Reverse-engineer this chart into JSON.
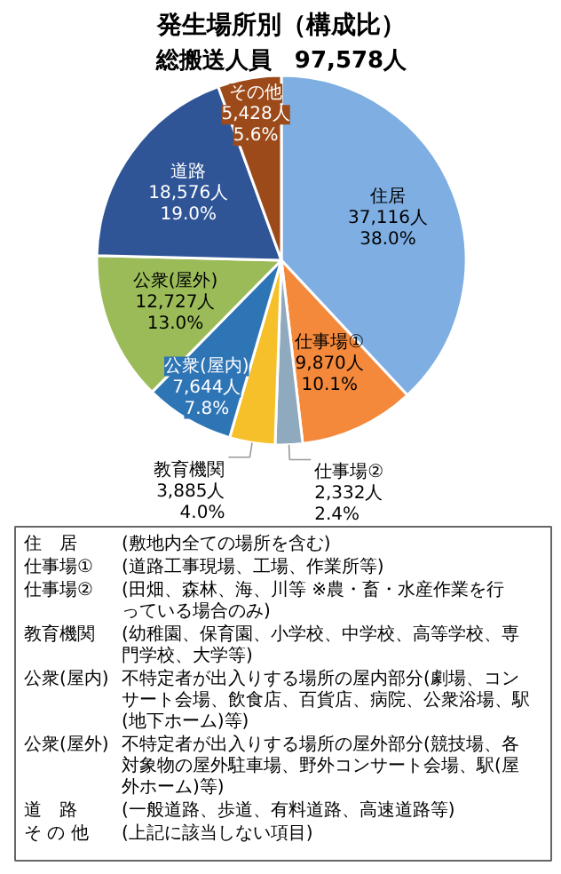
{
  "chart_data": {
    "type": "pie",
    "title": "発生場所別（構成比）",
    "subtitle": "総搬送人員　97,578人",
    "categories": [
      "住居",
      "仕事場①",
      "仕事場②",
      "教育機関",
      "公衆(屋内)",
      "公衆(屋外)",
      "道路",
      "その他"
    ],
    "values": [
      37116,
      9870,
      2332,
      3885,
      7644,
      12727,
      18576,
      5428
    ],
    "value_labels": [
      "37,116人\n38.0%",
      "9,870人\n10.1%",
      "2,332人\n2.4%",
      "3,885人\n4.0%",
      "7,644人\n7.8%",
      "12,727人\n13.0%",
      "18,576人\n19.0%",
      "5,428人\n5.6%"
    ],
    "colors": [
      "#7eaee2",
      "#f4893c",
      "#8fa9bf",
      "#f5c02a",
      "#2e75b6",
      "#9bbb59",
      "#2f5597",
      "#9c4a1a"
    ],
    "annotations": [
      "住　居\t(敷地内全ての場所を含む)",
      "仕事場①\t(道路工事現場、工場、作業所等)",
      "仕事場②\t(田畑、森林、海、川等 ※農・畜・水産作業を行っている場合のみ)",
      "教育機関\t(幼稚園、保育園、小学校、中学校、高等学校、専門学校、大学等)",
      "公衆(屋内)\t不特定者が出入りする場所の屋内部分(劇場、コンサート会場、飲食店、百貨店、病院、公衆浴場、駅(地下ホーム)等)",
      "公衆(屋外)\t不特定者が出入りする場所の屋外部分(競技場、各対象物の屋外駐車場、野外コンサート会場、駅(屋外ホーム)等)",
      "道　路\t(一般道路、歩道、有料道路、高速道路等)",
      "そ の 他\t(上記に該当しない項目)"
    ]
  }
}
